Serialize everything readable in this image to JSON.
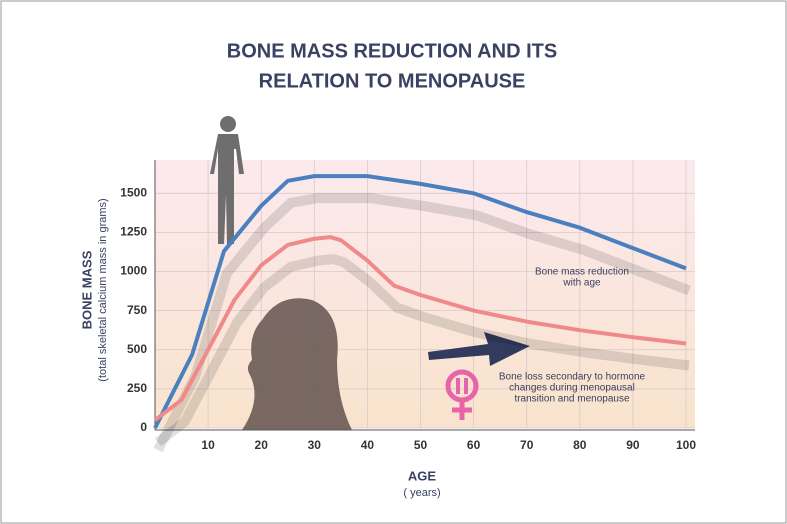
{
  "chart_data": {
    "type": "line",
    "title_lines": [
      "BONE MASS REDUCTION AND ITS",
      "RELATION TO MENOPAUSE"
    ],
    "y_label": "BONE MASS",
    "y_sublabel": "(total skeletal calcium mass in grams)",
    "x_label": "AGE",
    "x_sublabel": "( years)",
    "annotations": [
      {
        "lines": [
          "Bone mass reduction",
          "with age"
        ]
      },
      {
        "lines": [
          "Bone loss secondary to hormone",
          "changes during menopausal",
          "transition and menopause"
        ]
      }
    ],
    "xlim": [
      0,
      100
    ],
    "xticks": [
      10,
      20,
      30,
      40,
      50,
      60,
      70,
      80,
      90,
      100
    ],
    "ylim": [
      0,
      1700
    ],
    "yticks": [
      0,
      250,
      500,
      750,
      1000,
      1250,
      1500
    ],
    "grid": true,
    "series": [
      {
        "color": "#4a7fc0",
        "x": [
          0,
          7,
          10,
          13,
          20,
          25,
          30,
          40,
          50,
          60,
          70,
          80,
          90,
          100
        ],
        "values": [
          0,
          470,
          800,
          1130,
          1420,
          1580,
          1610,
          1610,
          1560,
          1500,
          1380,
          1280,
          1150,
          1020
        ]
      },
      {
        "color": "#f08a8a",
        "x": [
          0,
          5,
          10,
          15,
          20,
          25,
          30,
          33,
          35,
          40,
          45,
          50,
          60,
          70,
          80,
          90,
          100
        ],
        "values": [
          50,
          180,
          500,
          820,
          1040,
          1170,
          1210,
          1220,
          1200,
          1070,
          910,
          850,
          750,
          680,
          625,
          580,
          540
        ]
      }
    ]
  }
}
